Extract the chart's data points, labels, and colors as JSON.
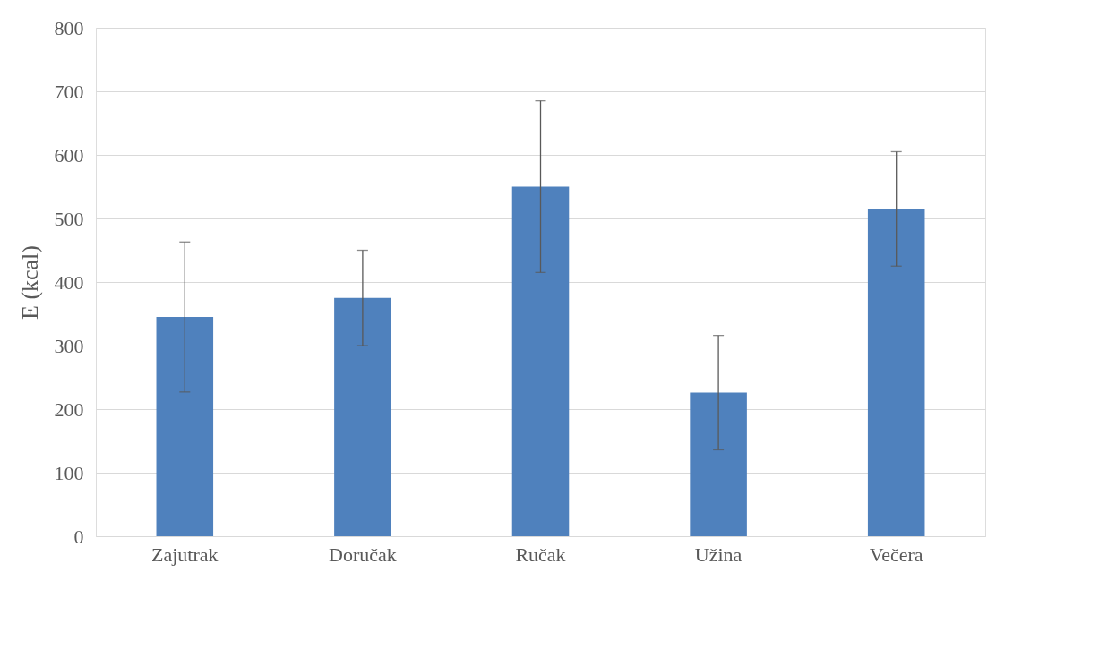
{
  "chart_data": {
    "type": "bar",
    "ylabel": "E (kcal)",
    "categories": [
      "Zajutrak",
      "Doručak",
      "Ručak",
      "Užina",
      "Večera"
    ],
    "values": [
      345,
      375,
      550,
      226,
      515
    ],
    "errors": [
      118,
      75,
      135,
      90,
      90
    ],
    "color": "#4f81bd",
    "ylim": [
      0,
      800
    ],
    "yticks": [
      0,
      100,
      200,
      300,
      400,
      500,
      600,
      700,
      800
    ],
    "grid": "y"
  }
}
